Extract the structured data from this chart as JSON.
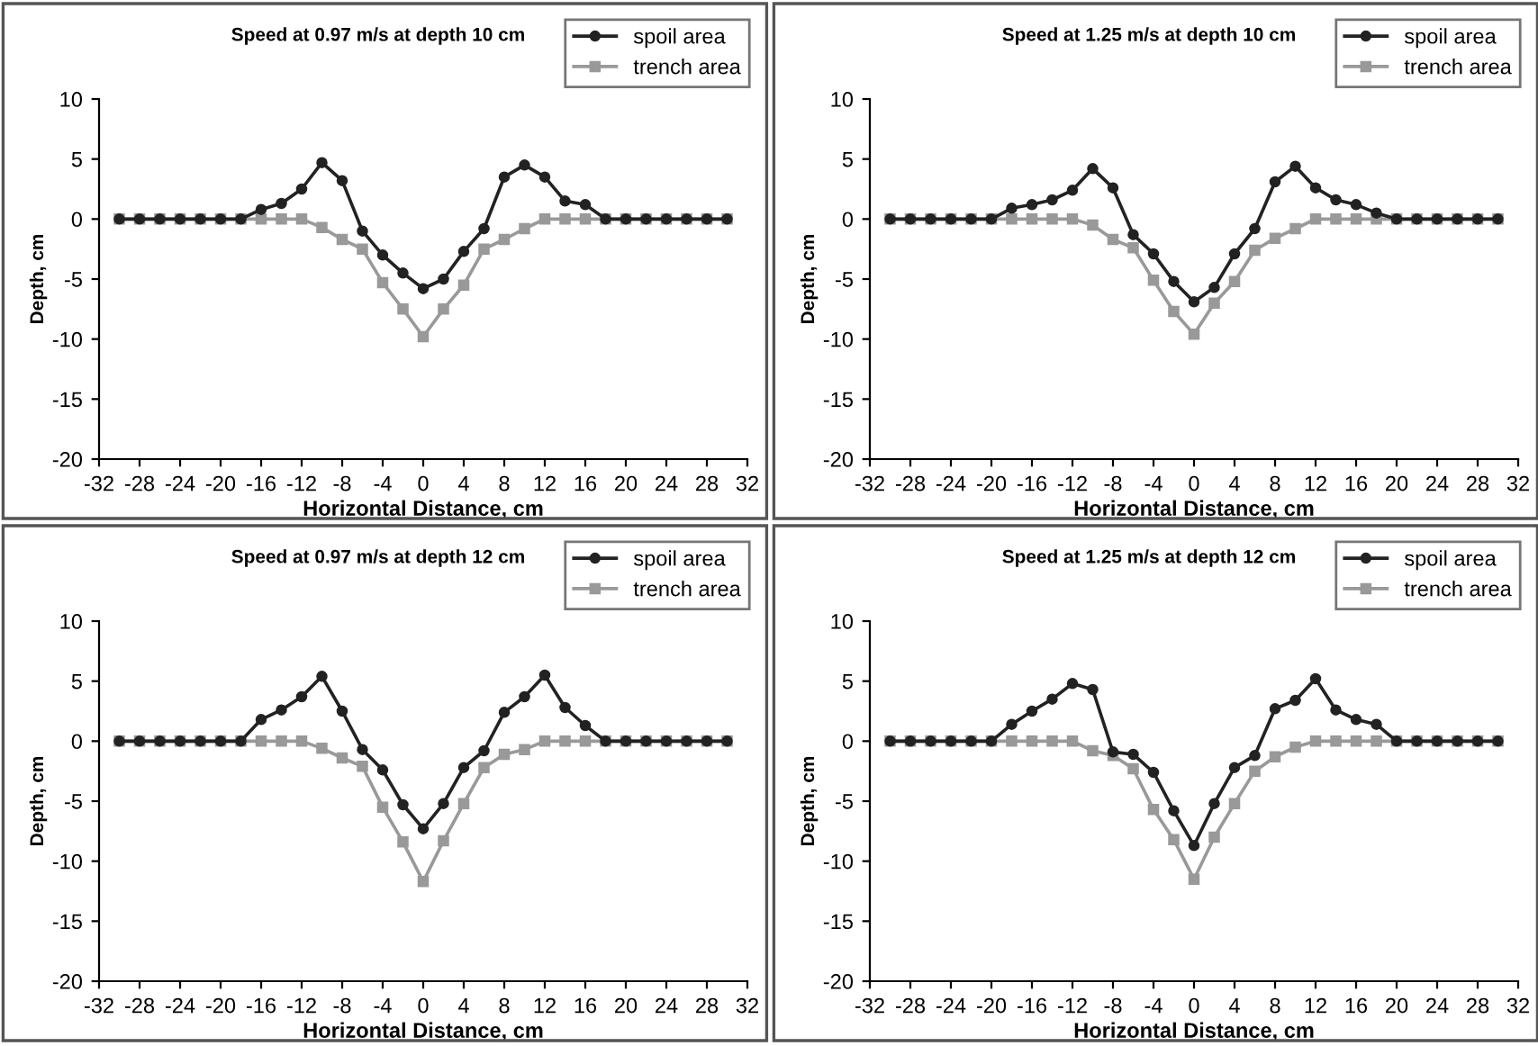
{
  "chart_data": [
    {
      "type": "line",
      "title": "Speed at 0.97 m/s at depth 10 cm",
      "xlabel": "Horizontal Distance, cm",
      "ylabel": "Depth, cm",
      "xlim": [
        -32,
        32
      ],
      "xticks": [
        -32,
        -28,
        -24,
        -20,
        -16,
        -12,
        -8,
        -4,
        0,
        4,
        8,
        12,
        16,
        20,
        24,
        28,
        32
      ],
      "ylim": [
        -20,
        10
      ],
      "yticks": [
        -20,
        -15,
        -10,
        -5,
        0,
        5,
        10
      ],
      "legend": "top right",
      "grid": false,
      "x": [
        -30,
        -28,
        -26,
        -24,
        -22,
        -20,
        -18,
        -16,
        -14,
        -12,
        -10,
        -8,
        -6,
        -4,
        -2,
        0,
        2,
        4,
        6,
        8,
        10,
        12,
        14,
        16,
        18,
        20,
        22,
        24,
        26,
        28,
        30
      ],
      "series": [
        {
          "name": "spoil area",
          "color": "#222222",
          "marker": "circle",
          "values": [
            0,
            0,
            0,
            0,
            0,
            0,
            0,
            0.8,
            1.3,
            2.5,
            4.7,
            3.2,
            -1,
            -3,
            -4.5,
            -5.8,
            -5,
            -2.7,
            -0.8,
            3.5,
            4.5,
            3.5,
            1.5,
            1.2,
            0,
            0,
            0,
            0,
            0,
            0,
            0
          ]
        },
        {
          "name": "trench area",
          "color": "#999999",
          "marker": "square",
          "values": [
            0,
            0,
            0,
            0,
            0,
            0,
            0,
            0,
            0,
            0,
            -0.7,
            -1.7,
            -2.5,
            -5.3,
            -7.5,
            -9.8,
            -7.5,
            -5.5,
            -2.5,
            -1.7,
            -0.8,
            0,
            0,
            0,
            0,
            0,
            0,
            0,
            0,
            0,
            0
          ]
        }
      ]
    },
    {
      "type": "line",
      "title": "Speed at 1.25 m/s at depth 10 cm",
      "xlabel": "Horizontal Distance, cm",
      "ylabel": "Depth, cm",
      "xlim": [
        -32,
        32
      ],
      "xticks": [
        -32,
        -28,
        -24,
        -20,
        -16,
        -12,
        -8,
        -4,
        0,
        4,
        8,
        12,
        16,
        20,
        24,
        28,
        32
      ],
      "ylim": [
        -20,
        10
      ],
      "yticks": [
        -20,
        -15,
        -10,
        -5,
        0,
        5,
        10
      ],
      "legend": "top right",
      "grid": false,
      "x": [
        -30,
        -28,
        -26,
        -24,
        -22,
        -20,
        -18,
        -16,
        -14,
        -12,
        -10,
        -8,
        -6,
        -4,
        -2,
        0,
        2,
        4,
        6,
        8,
        10,
        12,
        14,
        16,
        18,
        20,
        22,
        24,
        26,
        28,
        30
      ],
      "series": [
        {
          "name": "spoil area",
          "color": "#222222",
          "marker": "circle",
          "values": [
            0,
            0,
            0,
            0,
            0,
            0,
            0.9,
            1.2,
            1.6,
            2.4,
            4.2,
            2.6,
            -1.3,
            -2.9,
            -5.2,
            -6.9,
            -5.7,
            -2.9,
            -0.8,
            3.1,
            4.4,
            2.6,
            1.6,
            1.2,
            0.5,
            0,
            0,
            0,
            0,
            0,
            0
          ]
        },
        {
          "name": "trench area",
          "color": "#999999",
          "marker": "square",
          "values": [
            0,
            0,
            0,
            0,
            0,
            0,
            0,
            0,
            0,
            0,
            -0.5,
            -1.7,
            -2.4,
            -5.1,
            -7.7,
            -9.6,
            -7,
            -5.2,
            -2.6,
            -1.6,
            -0.8,
            0,
            0,
            0,
            0,
            0,
            0,
            0,
            0,
            0,
            0
          ]
        }
      ]
    },
    {
      "type": "line",
      "title": "Speed at 0.97 m/s at depth 12 cm",
      "xlabel": "Horizontal Distance, cm",
      "ylabel": "Depth, cm",
      "xlim": [
        -32,
        32
      ],
      "xticks": [
        -32,
        -28,
        -24,
        -20,
        -16,
        -12,
        -8,
        -4,
        0,
        4,
        8,
        12,
        16,
        20,
        24,
        28,
        32
      ],
      "ylim": [
        -20,
        10
      ],
      "yticks": [
        -20,
        -15,
        -10,
        -5,
        0,
        5,
        10
      ],
      "legend": "top right",
      "grid": false,
      "x": [
        -30,
        -28,
        -26,
        -24,
        -22,
        -20,
        -18,
        -16,
        -14,
        -12,
        -10,
        -8,
        -6,
        -4,
        -2,
        0,
        2,
        4,
        6,
        8,
        10,
        12,
        14,
        16,
        18,
        20,
        22,
        24,
        26,
        28,
        30
      ],
      "series": [
        {
          "name": "spoil area",
          "color": "#222222",
          "marker": "circle",
          "values": [
            0,
            0,
            0,
            0,
            0,
            0,
            0,
            1.8,
            2.6,
            3.7,
            5.4,
            2.5,
            -0.7,
            -2.4,
            -5.3,
            -7.3,
            -5.2,
            -2.2,
            -0.8,
            2.4,
            3.7,
            5.5,
            2.8,
            1.3,
            0,
            0,
            0,
            0,
            0,
            0,
            0
          ]
        },
        {
          "name": "trench area",
          "color": "#999999",
          "marker": "square",
          "values": [
            0,
            0,
            0,
            0,
            0,
            0,
            0,
            0,
            0,
            0,
            -0.6,
            -1.4,
            -2.1,
            -5.5,
            -8.4,
            -11.7,
            -8.3,
            -5.2,
            -2.2,
            -1.1,
            -0.7,
            0,
            0,
            0,
            0,
            0,
            0,
            0,
            0,
            0,
            0
          ]
        }
      ]
    },
    {
      "type": "line",
      "title": "Speed at 1.25 m/s at depth 12 cm",
      "xlabel": "Horizontal Distance, cm",
      "ylabel": "Depth, cm",
      "xlim": [
        -32,
        32
      ],
      "xticks": [
        -32,
        -28,
        -24,
        -20,
        -16,
        -12,
        -8,
        -4,
        0,
        4,
        8,
        12,
        16,
        20,
        24,
        28,
        32
      ],
      "ylim": [
        -20,
        10
      ],
      "yticks": [
        -20,
        -15,
        -10,
        -5,
        0,
        5,
        10
      ],
      "legend": "top right",
      "grid": false,
      "x": [
        -30,
        -28,
        -26,
        -24,
        -22,
        -20,
        -18,
        -16,
        -14,
        -12,
        -10,
        -8,
        -6,
        -4,
        -2,
        0,
        2,
        4,
        6,
        8,
        10,
        12,
        14,
        16,
        18,
        20,
        22,
        24,
        26,
        28,
        30
      ],
      "series": [
        {
          "name": "spoil area",
          "color": "#222222",
          "marker": "circle",
          "values": [
            0,
            0,
            0,
            0,
            0,
            0,
            1.4,
            2.5,
            3.5,
            4.8,
            4.3,
            -0.9,
            -1.1,
            -2.6,
            -5.8,
            -8.7,
            -5.2,
            -2.2,
            -1.2,
            2.7,
            3.4,
            5.2,
            2.6,
            1.8,
            1.4,
            0,
            0,
            0,
            0,
            0,
            0
          ]
        },
        {
          "name": "trench area",
          "color": "#999999",
          "marker": "square",
          "values": [
            0,
            0,
            0,
            0,
            0,
            0,
            0,
            0,
            0,
            0,
            -0.8,
            -1.2,
            -2.3,
            -5.7,
            -8.2,
            -11.5,
            -8,
            -5.2,
            -2.5,
            -1.3,
            -0.5,
            0,
            0,
            0,
            0,
            0,
            0,
            0,
            0,
            0,
            0
          ]
        }
      ]
    }
  ]
}
